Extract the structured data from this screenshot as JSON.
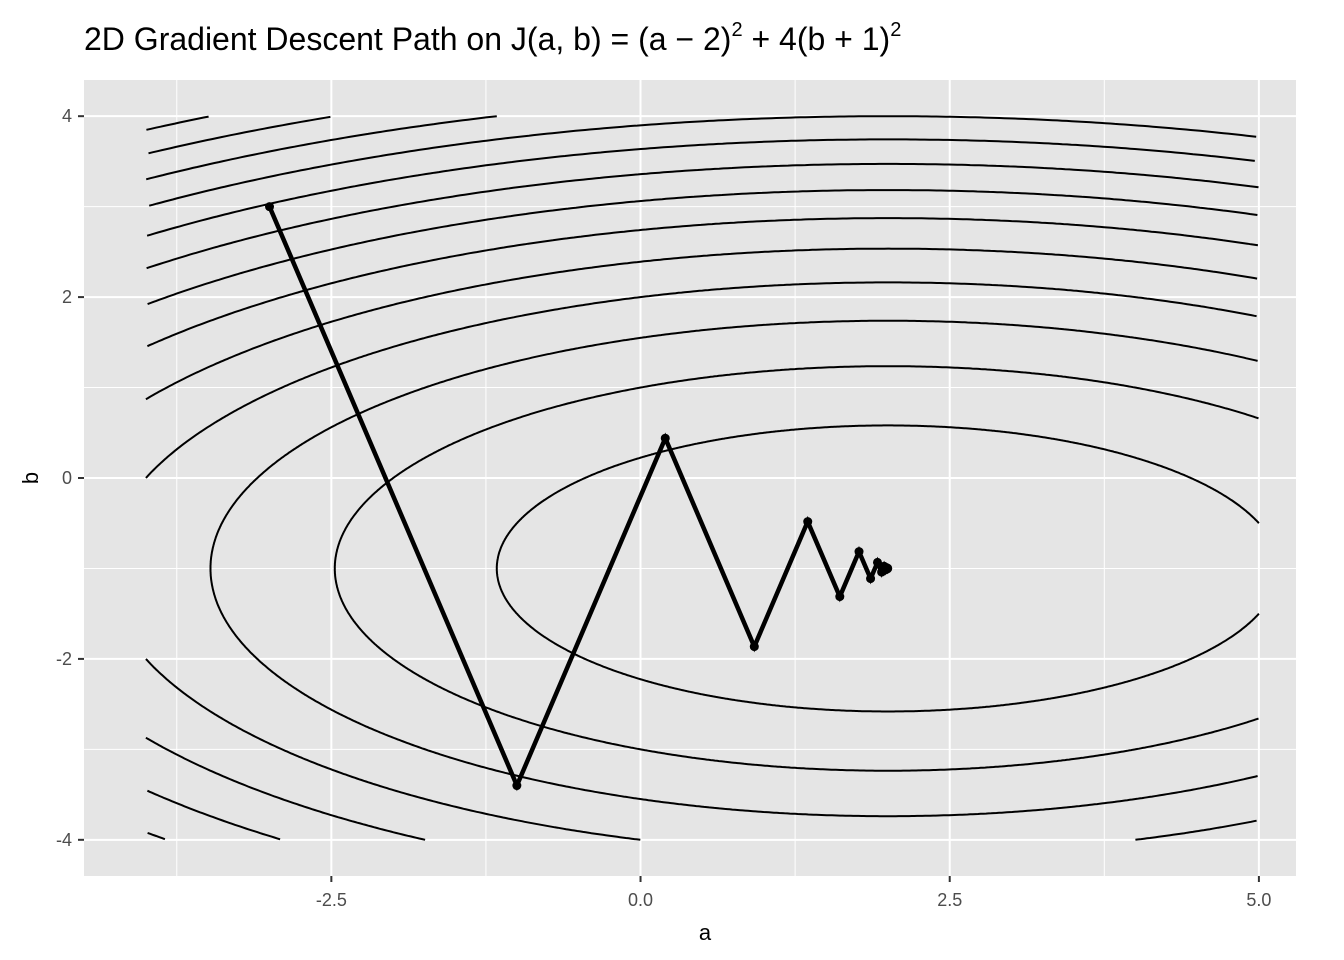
{
  "chart_data": {
    "type": "line",
    "title": {
      "prefix": "2D Gradient Descent Path on J",
      "args": "(a, b)",
      "eq": " = ",
      "term1": "(a − 2)",
      "exp1": "2",
      "plus": " + 4",
      "term2": "(b + 1)",
      "exp2": "2"
    },
    "xlabel": "a",
    "ylabel": "b",
    "xlim": [
      -4.5,
      5.3
    ],
    "ylim": [
      -4.4,
      4.4
    ],
    "x_ticks": [
      -2.5,
      0.0,
      2.5,
      5.0
    ],
    "x_tick_labels": [
      "-2.5",
      "0.0",
      "2.5",
      "5.0"
    ],
    "y_ticks": [
      -4,
      -2,
      0,
      2,
      4
    ],
    "y_tick_labels": [
      "-4",
      "-2",
      "0",
      "2",
      "4"
    ],
    "grid": true,
    "background": "#e5e5e5",
    "grid_color": "#ffffff",
    "line_color": "#000000",
    "contour": {
      "function": "J(a,b) = (a-2)^2 + 4(b+1)^2",
      "center": [
        2,
        -1
      ],
      "a_range": [
        -4,
        5
      ],
      "b_range": [
        -4,
        4
      ],
      "levels": [
        10,
        20,
        30,
        40,
        50,
        60,
        70,
        80,
        90,
        100,
        110,
        120,
        130
      ]
    },
    "series": [
      {
        "x": [
          -3.0,
          -1.0,
          0.2,
          0.92,
          1.352,
          1.6112,
          1.7667,
          1.86,
          1.916,
          1.9496,
          1.9698,
          1.9819,
          1.9891,
          1.9935,
          1.9961,
          1.9977,
          1.9986
        ],
        "y": [
          3.0,
          -3.4,
          0.44,
          -1.864,
          -0.4816,
          -1.311,
          -0.8134,
          -1.112,
          -0.9328,
          -1.0403,
          -0.9758,
          -1.0145,
          -0.9913,
          -1.0052,
          -0.9969,
          -1.0019,
          -0.9989
        ]
      }
    ]
  }
}
